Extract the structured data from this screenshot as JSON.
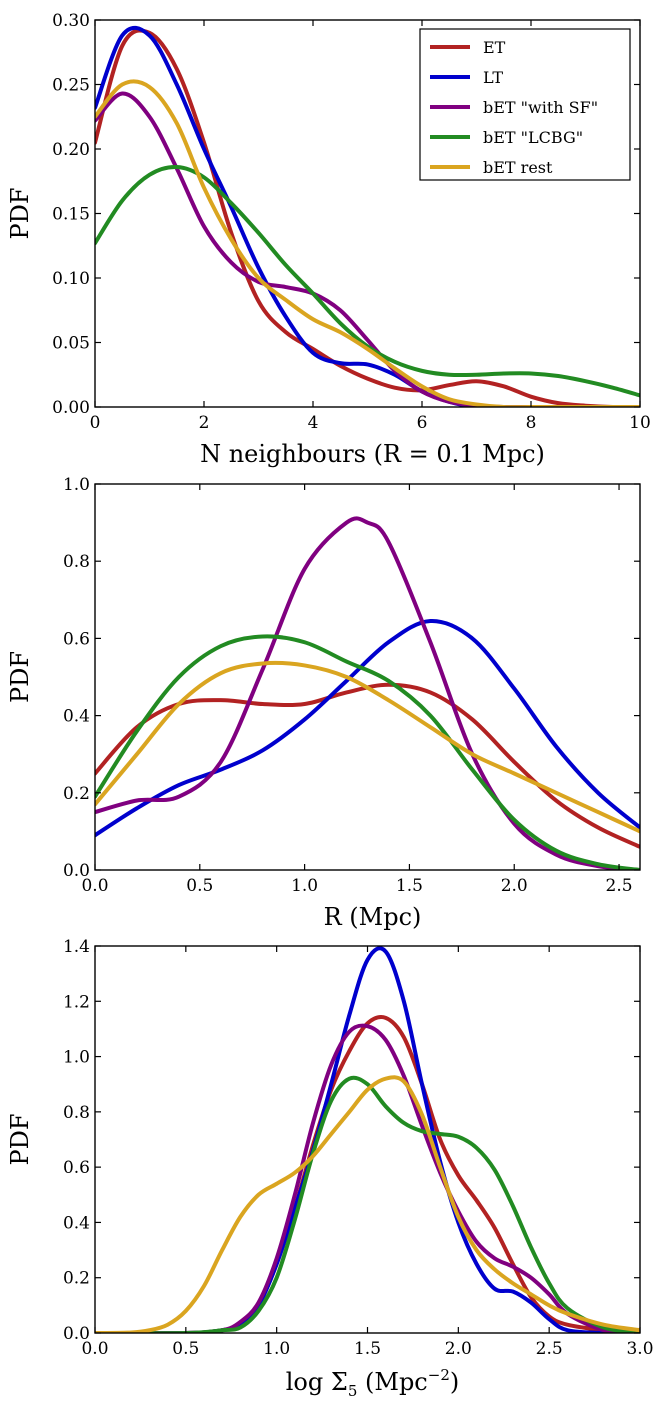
{
  "chart_data": [
    {
      "type": "line",
      "title": "",
      "xlabel": "N neighbours (R = 0.1 Mpc)",
      "ylabel": "PDF",
      "xlim": [
        0,
        10
      ],
      "ylim": [
        0,
        0.3
      ],
      "xticks": [
        "0",
        "2",
        "4",
        "6",
        "8",
        "10"
      ],
      "yticks": [
        "0.00",
        "0.05",
        "0.10",
        "0.15",
        "0.20",
        "0.25",
        "0.30"
      ],
      "legend": "top-right",
      "series": [
        {
          "name": "ET",
          "color": "#b22222",
          "x": [
            0,
            0.5,
            1,
            1.5,
            2,
            2.5,
            3,
            3.5,
            4,
            4.5,
            5,
            5.5,
            6,
            6.5,
            7,
            7.5,
            8,
            8.5,
            9,
            9.5,
            10
          ],
          "y": [
            0.205,
            0.28,
            0.29,
            0.262,
            0.205,
            0.135,
            0.082,
            0.058,
            0.045,
            0.032,
            0.022,
            0.015,
            0.013,
            0.017,
            0.02,
            0.016,
            0.008,
            0.003,
            0.001,
            0.0,
            0.0
          ]
        },
        {
          "name": "LT",
          "color": "#0000cd",
          "x": [
            0,
            0.5,
            1,
            1.5,
            2,
            2.5,
            3,
            3.5,
            4,
            4.5,
            5,
            5.5,
            6,
            6.5,
            7,
            7.5,
            8,
            9,
            10
          ],
          "y": [
            0.232,
            0.288,
            0.288,
            0.25,
            0.2,
            0.155,
            0.108,
            0.07,
            0.042,
            0.034,
            0.033,
            0.025,
            0.012,
            0.004,
            0.0,
            0.0,
            0.0,
            0.0,
            0.0
          ]
        },
        {
          "name": "bET \"with SF\"",
          "color": "#800080",
          "x": [
            0,
            0.5,
            1,
            1.5,
            2,
            2.5,
            3,
            3.5,
            4,
            4.5,
            5,
            5.5,
            6,
            6.5,
            7,
            7.5,
            8,
            9,
            10
          ],
          "y": [
            0.222,
            0.243,
            0.225,
            0.185,
            0.14,
            0.112,
            0.097,
            0.093,
            0.088,
            0.075,
            0.052,
            0.028,
            0.012,
            0.004,
            0.001,
            0.0,
            0.0,
            0.0,
            0.0
          ]
        },
        {
          "name": "bET \"LCBG\"",
          "color": "#228b22",
          "x": [
            0,
            0.5,
            1,
            1.5,
            2,
            2.5,
            3,
            3.5,
            4,
            4.5,
            5,
            5.5,
            6,
            6.5,
            7,
            7.5,
            8,
            8.5,
            9,
            9.5,
            10
          ],
          "y": [
            0.127,
            0.16,
            0.18,
            0.186,
            0.178,
            0.158,
            0.135,
            0.11,
            0.088,
            0.065,
            0.047,
            0.035,
            0.028,
            0.025,
            0.025,
            0.026,
            0.026,
            0.024,
            0.02,
            0.015,
            0.009
          ]
        },
        {
          "name": "bET rest",
          "color": "#daa520",
          "x": [
            0,
            0.5,
            1,
            1.5,
            2,
            2.5,
            3,
            3.5,
            4,
            4.5,
            5,
            5.5,
            6,
            6.5,
            7,
            7.5,
            8,
            9,
            10
          ],
          "y": [
            0.225,
            0.25,
            0.248,
            0.22,
            0.17,
            0.13,
            0.1,
            0.083,
            0.068,
            0.058,
            0.045,
            0.03,
            0.016,
            0.006,
            0.002,
            0.0,
            0.0,
            0.0,
            0.0
          ]
        }
      ]
    },
    {
      "type": "line",
      "title": "",
      "xlabel": "R (Mpc)",
      "ylabel": "PDF",
      "xlim": [
        0,
        2.6
      ],
      "ylim": [
        0,
        1.0
      ],
      "xticks": [
        "0.0",
        "0.5",
        "1.0",
        "1.5",
        "2.0",
        "2.5"
      ],
      "yticks": [
        "0.0",
        "0.2",
        "0.4",
        "0.6",
        "0.8",
        "1.0"
      ],
      "series": [
        {
          "name": "ET",
          "color": "#b22222",
          "x": [
            0,
            0.2,
            0.4,
            0.6,
            0.8,
            1.0,
            1.2,
            1.4,
            1.6,
            1.8,
            2.0,
            2.2,
            2.4,
            2.6
          ],
          "y": [
            0.25,
            0.37,
            0.43,
            0.44,
            0.43,
            0.43,
            0.46,
            0.48,
            0.46,
            0.39,
            0.28,
            0.18,
            0.11,
            0.06
          ]
        },
        {
          "name": "LT",
          "color": "#0000cd",
          "x": [
            0,
            0.2,
            0.4,
            0.6,
            0.8,
            1.0,
            1.2,
            1.4,
            1.6,
            1.8,
            2.0,
            2.2,
            2.4,
            2.6
          ],
          "y": [
            0.09,
            0.16,
            0.22,
            0.26,
            0.31,
            0.39,
            0.49,
            0.59,
            0.645,
            0.6,
            0.47,
            0.32,
            0.2,
            0.11
          ]
        },
        {
          "name": "bET \"with SF\"",
          "color": "#800080",
          "x": [
            0,
            0.2,
            0.4,
            0.6,
            0.8,
            1.0,
            1.2,
            1.3,
            1.4,
            1.6,
            1.8,
            2.0,
            2.2,
            2.4,
            2.6
          ],
          "y": [
            0.15,
            0.18,
            0.19,
            0.28,
            0.52,
            0.78,
            0.9,
            0.9,
            0.85,
            0.59,
            0.3,
            0.12,
            0.04,
            0.01,
            0.0
          ]
        },
        {
          "name": "bET \"LCBG\"",
          "color": "#228b22",
          "x": [
            0,
            0.2,
            0.4,
            0.6,
            0.8,
            1.0,
            1.2,
            1.4,
            1.6,
            1.8,
            2.0,
            2.2,
            2.4,
            2.6
          ],
          "y": [
            0.19,
            0.36,
            0.5,
            0.58,
            0.605,
            0.59,
            0.54,
            0.49,
            0.4,
            0.26,
            0.13,
            0.05,
            0.015,
            0.0
          ]
        },
        {
          "name": "bET rest",
          "color": "#daa520",
          "x": [
            0,
            0.2,
            0.4,
            0.6,
            0.8,
            1.0,
            1.2,
            1.4,
            1.6,
            1.8,
            2.0,
            2.2,
            2.4,
            2.6
          ],
          "y": [
            0.17,
            0.3,
            0.43,
            0.51,
            0.535,
            0.53,
            0.5,
            0.44,
            0.37,
            0.3,
            0.25,
            0.2,
            0.15,
            0.1
          ]
        }
      ]
    },
    {
      "type": "line",
      "title": "",
      "xlabel": "log Σ5 (Mpc−2)",
      "ylabel": "PDF",
      "xlim": [
        0,
        3.0
      ],
      "ylim": [
        0,
        1.4
      ],
      "xticks": [
        "0.0",
        "0.5",
        "1.0",
        "1.5",
        "2.0",
        "2.5",
        "3.0"
      ],
      "yticks": [
        "0.0",
        "0.2",
        "0.4",
        "0.6",
        "0.8",
        "1.0",
        "1.2",
        "1.4"
      ],
      "series": [
        {
          "name": "ET",
          "color": "#b22222",
          "x": [
            0,
            0.5,
            0.7,
            0.8,
            0.9,
            1.0,
            1.1,
            1.2,
            1.3,
            1.4,
            1.5,
            1.6,
            1.7,
            1.8,
            1.9,
            2.0,
            2.1,
            2.2,
            2.3,
            2.4,
            2.5,
            2.6,
            2.8,
            3.0
          ],
          "y": [
            0,
            0,
            0.01,
            0.03,
            0.1,
            0.25,
            0.45,
            0.68,
            0.88,
            1.02,
            1.12,
            1.14,
            1.07,
            0.9,
            0.7,
            0.57,
            0.48,
            0.38,
            0.25,
            0.13,
            0.06,
            0.03,
            0.01,
            0.0
          ]
        },
        {
          "name": "LT",
          "color": "#0000cd",
          "x": [
            0,
            0.5,
            0.7,
            0.8,
            0.9,
            1.0,
            1.1,
            1.2,
            1.3,
            1.4,
            1.5,
            1.6,
            1.7,
            1.8,
            1.9,
            2.0,
            2.1,
            2.2,
            2.3,
            2.4,
            2.5,
            2.6,
            2.8,
            3.0
          ],
          "y": [
            0,
            0,
            0.01,
            0.03,
            0.1,
            0.25,
            0.45,
            0.66,
            0.9,
            1.15,
            1.35,
            1.38,
            1.2,
            0.9,
            0.62,
            0.4,
            0.25,
            0.16,
            0.15,
            0.11,
            0.05,
            0.01,
            0.0,
            0.0
          ]
        },
        {
          "name": "bET \"with SF\"",
          "color": "#800080",
          "x": [
            0,
            0.5,
            0.7,
            0.8,
            0.9,
            1.0,
            1.1,
            1.2,
            1.3,
            1.4,
            1.5,
            1.6,
            1.7,
            1.8,
            1.9,
            2.0,
            2.1,
            2.2,
            2.3,
            2.4,
            2.5,
            2.6,
            2.8,
            3.0
          ],
          "y": [
            0,
            0,
            0.01,
            0.04,
            0.11,
            0.27,
            0.5,
            0.76,
            0.97,
            1.09,
            1.11,
            1.06,
            0.93,
            0.75,
            0.58,
            0.44,
            0.33,
            0.27,
            0.24,
            0.2,
            0.14,
            0.07,
            0.01,
            0.0
          ]
        },
        {
          "name": "bET \"LCBG\"",
          "color": "#228b22",
          "x": [
            0,
            0.5,
            0.7,
            0.8,
            0.9,
            1.0,
            1.1,
            1.2,
            1.3,
            1.4,
            1.5,
            1.6,
            1.7,
            1.8,
            1.9,
            2.0,
            2.1,
            2.2,
            2.3,
            2.4,
            2.5,
            2.6,
            2.8,
            3.0
          ],
          "y": [
            0,
            0,
            0.01,
            0.02,
            0.08,
            0.2,
            0.41,
            0.65,
            0.84,
            0.92,
            0.9,
            0.82,
            0.76,
            0.73,
            0.72,
            0.71,
            0.67,
            0.59,
            0.46,
            0.31,
            0.18,
            0.09,
            0.02,
            0.0
          ]
        },
        {
          "name": "bET rest",
          "color": "#daa520",
          "x": [
            0,
            0.2,
            0.3,
            0.4,
            0.5,
            0.6,
            0.7,
            0.8,
            0.9,
            1.0,
            1.1,
            1.2,
            1.3,
            1.4,
            1.5,
            1.6,
            1.7,
            1.8,
            1.9,
            2.0,
            2.1,
            2.2,
            2.3,
            2.4,
            2.5,
            2.6,
            2.8,
            3.0
          ],
          "y": [
            0,
            0.002,
            0.01,
            0.03,
            0.08,
            0.17,
            0.3,
            0.42,
            0.5,
            0.54,
            0.58,
            0.64,
            0.72,
            0.8,
            0.88,
            0.92,
            0.91,
            0.79,
            0.6,
            0.42,
            0.3,
            0.23,
            0.18,
            0.14,
            0.1,
            0.07,
            0.03,
            0.01
          ]
        }
      ]
    }
  ]
}
